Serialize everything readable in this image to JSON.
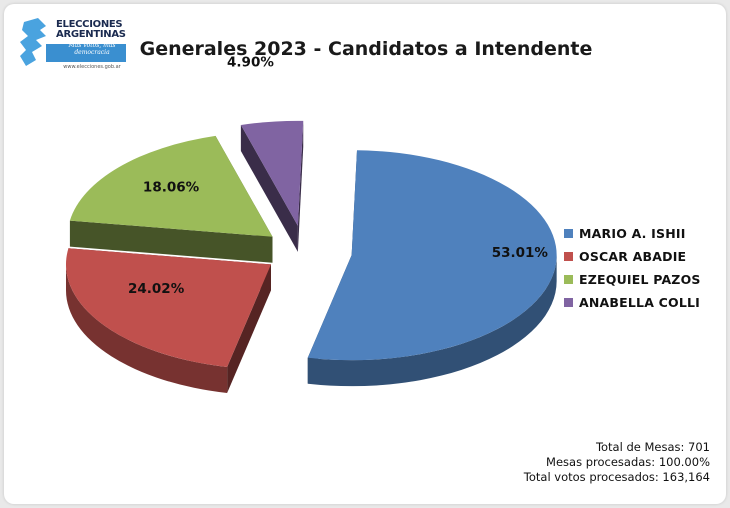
{
  "logo": {
    "name": "ELECCIONES ARGENTINAS",
    "slogan": "Más votos, más democracia",
    "url": "www.elecciones.gob.ar"
  },
  "chart_data": {
    "type": "pie",
    "title": "Generales 2023 - Candidatos a Intendente",
    "categories": [
      "MARIO A. ISHII",
      "OSCAR ABADIE",
      "EZEQUIEL PAZOS",
      "ANABELLA COLLI"
    ],
    "values": [
      53.01,
      24.02,
      18.06,
      4.9
    ],
    "labels": [
      "53.01%",
      "24.02%",
      "18.06%",
      "4.90%"
    ],
    "colors": [
      "#4f81bd",
      "#c0504d",
      "#9bbb59",
      "#8064a2"
    ],
    "legend_position": "right",
    "exploded": true,
    "style": "3d"
  },
  "totals": {
    "mesas": "Total de Mesas: 701",
    "procesadas": "Mesas procesadas: 100.00%",
    "votos": "Total votos procesados: 163,164"
  }
}
